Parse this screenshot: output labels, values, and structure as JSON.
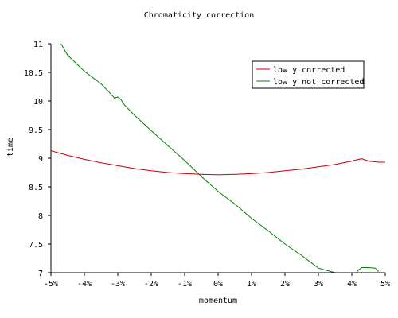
{
  "chart_data": {
    "type": "line",
    "title": "Chromaticity correction",
    "xlabel": "momentum",
    "ylabel": "time",
    "xlim": [
      -5,
      5
    ],
    "ylim": [
      7,
      11
    ],
    "x_ticks": [
      -5,
      -4,
      -3,
      -2,
      -1,
      0,
      1,
      2,
      3,
      4,
      5
    ],
    "x_tick_labels": [
      "-5%",
      "-4%",
      "-3%",
      "-2%",
      "-1%",
      "0%",
      "1%",
      "2%",
      "3%",
      "4%",
      "5%"
    ],
    "y_ticks": [
      7,
      7.5,
      8,
      8.5,
      9,
      9.5,
      10,
      10.5,
      11
    ],
    "y_tick_labels": [
      "7",
      "7.5",
      "8",
      "8.5",
      "9",
      "9.5",
      "10",
      "10.5",
      "11"
    ],
    "grid": false,
    "legend_position": "top-right",
    "series": [
      {
        "name": "low y corrected",
        "color": "#cc0000",
        "x": [
          -5,
          -4.5,
          -4,
          -3.5,
          -3,
          -2.5,
          -2,
          -1.5,
          -1,
          -0.5,
          0,
          0.5,
          1,
          1.5,
          2,
          2.5,
          3,
          3.5,
          4,
          4.2,
          4.3,
          4.5,
          4.8,
          5
        ],
        "y": [
          9.13,
          9.05,
          8.98,
          8.92,
          8.87,
          8.82,
          8.78,
          8.75,
          8.73,
          8.72,
          8.71,
          8.72,
          8.73,
          8.75,
          8.78,
          8.81,
          8.85,
          8.89,
          8.95,
          8.98,
          8.99,
          8.95,
          8.93,
          8.93
        ]
      },
      {
        "name": "low y not corrected",
        "color": "#008000",
        "x": [
          -4.7,
          -4.6,
          -4.5,
          -4,
          -3.5,
          -3.2,
          -3.1,
          -3.0,
          -2.9,
          -2.8,
          -2.5,
          -2,
          -1.5,
          -1,
          -0.5,
          0,
          0.5,
          1,
          1.5,
          2,
          2.5,
          3,
          3.5,
          4,
          4.2,
          4.3,
          4.5,
          4.7,
          4.8
        ],
        "y": [
          11.0,
          10.9,
          10.8,
          10.52,
          10.3,
          10.12,
          10.05,
          10.07,
          10.02,
          9.93,
          9.75,
          9.48,
          9.22,
          8.96,
          8.68,
          8.42,
          8.2,
          7.95,
          7.73,
          7.5,
          7.3,
          7.08,
          7.0,
          6.9,
          7.05,
          7.09,
          7.09,
          7.08,
          7.02
        ]
      }
    ]
  }
}
